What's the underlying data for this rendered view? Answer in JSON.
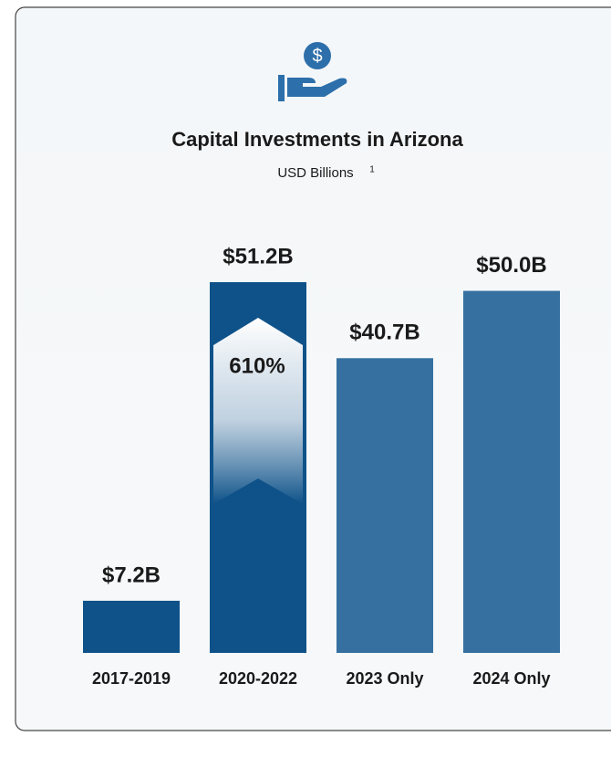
{
  "chart_data": {
    "type": "bar",
    "title": "Capital Investments in Arizona",
    "subtitle": "USD Billions",
    "subtitle_note": "1",
    "categories": [
      "2017-2019",
      "2020-2022",
      "2023 Only",
      "2024 Only"
    ],
    "values": [
      7.2,
      51.2,
      40.7,
      50.0
    ],
    "value_labels": [
      "$7.2B",
      "$51.2B",
      "$40.7B",
      "$50.0B"
    ],
    "colors": [
      "#0e5289",
      "#0e5289",
      "#3570a0",
      "#3570a0"
    ],
    "annotation": "610%"
  }
}
